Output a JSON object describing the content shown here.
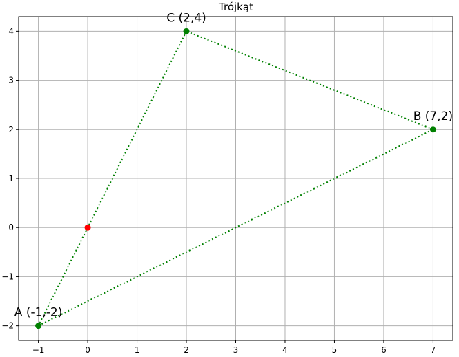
{
  "chart_data": {
    "type": "scatter",
    "title": "Trójkąt",
    "xlabel": "",
    "ylabel": "",
    "xlim": [
      -1.4,
      7.4
    ],
    "ylim": [
      -2.3,
      4.3
    ],
    "grid": true,
    "x_ticks": [
      -1,
      0,
      1,
      2,
      3,
      4,
      5,
      6,
      7
    ],
    "y_ticks": [
      -2,
      -1,
      0,
      1,
      2,
      3,
      4
    ],
    "x_tick_labels": [
      "−1",
      "0",
      "1",
      "2",
      "3",
      "4",
      "5",
      "6",
      "7"
    ],
    "y_tick_labels": [
      "−2",
      "−1",
      "0",
      "1",
      "2",
      "3",
      "4"
    ],
    "vertices": [
      {
        "label": "A (-1,-2)",
        "x": -1,
        "y": -2
      },
      {
        "label": "B (7,2)",
        "x": 7,
        "y": 2
      },
      {
        "label": "C (2,4)",
        "x": 2,
        "y": 4
      }
    ],
    "extra_points": [
      {
        "x": 0,
        "y": 0
      }
    ],
    "edge_order": [
      0,
      1,
      2,
      0
    ],
    "colors": {
      "triangle": "#008000",
      "extra_point": "#ff0000",
      "grid": "#b0b0b0",
      "axes": "#000000"
    },
    "line_style": "dotted"
  }
}
